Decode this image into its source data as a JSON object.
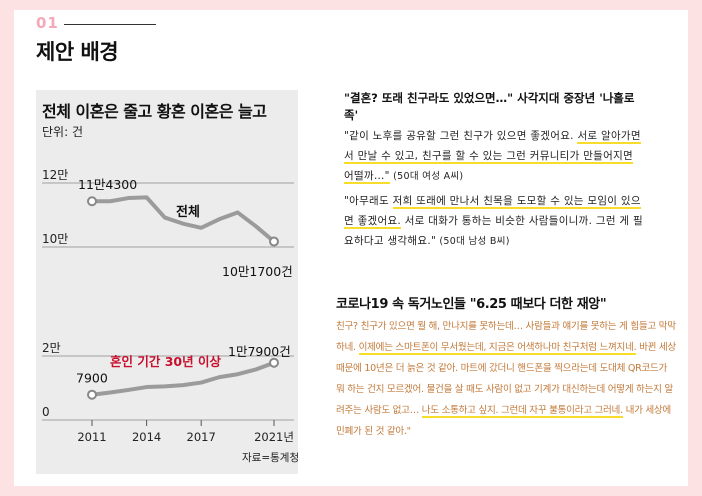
{
  "slide": {
    "number": "01",
    "title": "제안 배경"
  },
  "chart_data": {
    "type": "line",
    "title": "전체 이혼은 줄고 황혼 이혼은 늘고",
    "unit_label": "단위: 건",
    "x_ticks": [
      "2011",
      "2014",
      "2017",
      "2021년"
    ],
    "source": "자료=통계청",
    "upper": {
      "name": "전체",
      "y_tick_labels": [
        "12만",
        "10만"
      ],
      "ylim": [
        100000,
        120000
      ],
      "x": [
        2011,
        2012,
        2013,
        2014,
        2015,
        2016,
        2017,
        2018,
        2019,
        2020,
        2021
      ],
      "values": [
        114300,
        114300,
        115300,
        115500,
        109200,
        107300,
        106000,
        108700,
        110800,
        106500,
        101700
      ],
      "start_label": "11만4300",
      "end_label": "10만1700건"
    },
    "lower": {
      "name": "혼인 기간 30년 이상",
      "y_tick_labels": [
        "2만",
        "0"
      ],
      "ylim": [
        0,
        20000
      ],
      "x": [
        2011,
        2012,
        2013,
        2014,
        2015,
        2016,
        2017,
        2018,
        2019,
        2020,
        2021
      ],
      "values": [
        7900,
        8600,
        9400,
        10300,
        10500,
        10900,
        11700,
        13400,
        14300,
        15800,
        17900
      ],
      "start_label": "7900",
      "end_label": "1만7900건"
    },
    "colors": {
      "line": "#9b9b9b",
      "accent": "#c8102e"
    }
  },
  "quote1": {
    "headline": "\"결혼? 또래 친구라도 있었으면…\" 사각지대 중장년 '나홀로족'",
    "p1_a": "\"같이 노후를 공유할 그런 친구가 있으면 좋겠어요. ",
    "p1_b": "서로 알아가면서 만날 수 있고, 친구를 할 수 있는 그런 커뮤니티가 만들어지면 어떨까…\"",
    "p1_c": " (50대 여성 A씨)",
    "p2_a": "\"아무래도 ",
    "p2_b": "저희 또래에 만나서 친목을 도모할 수 있는 모임이 있으면 좋겠어요.",
    "p2_c": " 서로 대화가 통하는 비슷한 사람들이니까. 그런 게 필요하다고 생각해요.\"",
    "p2_d": " (50대 남성 B씨)"
  },
  "news": {
    "title": "코로나19 속 독거노인들 \"6.25 때보다 더한 재앙\"",
    "t1": "친구? 친구가 있으면 뭘 해, 만나지를 못하는데… 사람들과 얘기를 못하는 게 힘들고 막막하네. ",
    "t2": "이제에는 스마트폰이 무서웠는데, 지금은 어색하나마 친구처럼 느껴지네.",
    "t3": " 바뀐 세상 때문에 10년은 더 늙은 것 같아. 마트에 갔더니 핸드폰을 찍으라는데 도대체 QR코드가 뭐 하는 건지 모르겠어. 물건을 살 때도 사람이 없고 기계가 대신하는데 어떻게 하는지 알려주는 사람도 없고… ",
    "t4": "나도 소통하고 싶지. 그런데 자꾸 불통이라고 그러네.",
    "t5": " 내가 세상에 민폐가 된 것 같아.\""
  }
}
